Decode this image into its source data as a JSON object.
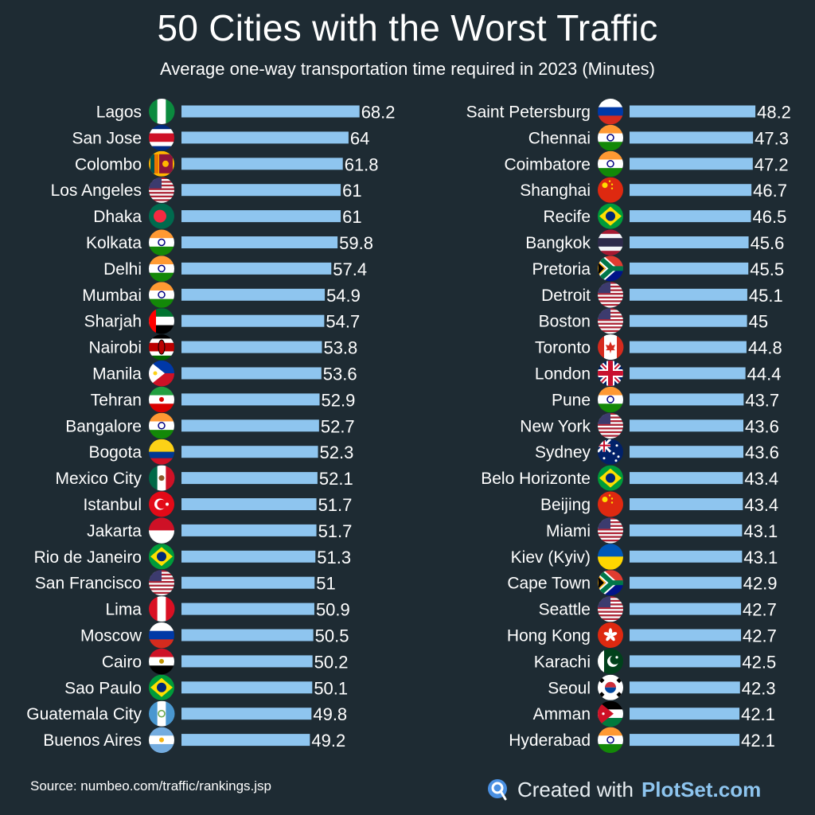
{
  "header": {
    "title": "50 Cities with the Worst Traffic",
    "subtitle": "Average one-way transportation time required  in 2023 (Minutes)"
  },
  "footer": {
    "source": "Source: numbeo.com/traffic/rankings.jsp",
    "created_with": "Created with",
    "brand": "PlotSet.com"
  },
  "colors": {
    "background": "#1e2b33",
    "bar": "#8ec5ef",
    "text": "#ffffff",
    "brand": "#8ec5ef"
  },
  "chart_data": {
    "type": "bar",
    "orientation": "horizontal",
    "title": "50 Cities with the Worst Traffic",
    "subtitle": "Average one-way transportation time required  in 2023 (Minutes)",
    "grid": false,
    "legend": "none",
    "columns": [
      {
        "categories": [
          "Lagos",
          "San Jose",
          "Colombo",
          "Los Angeles",
          "Dhaka",
          "Kolkata",
          "Delhi",
          "Mumbai",
          "Sharjah",
          "Nairobi",
          "Manila",
          "Tehran",
          "Bangalore",
          "Bogota",
          "Mexico City",
          "Istanbul",
          "Jakarta",
          "Rio de Janeiro",
          "San Francisco",
          "Lima",
          "Moscow",
          "Cairo",
          "Sao Paulo",
          "Guatemala City",
          "Buenos Aires"
        ],
        "values": [
          68.2,
          64,
          61.8,
          61,
          61,
          59.8,
          57.4,
          54.9,
          54.7,
          53.8,
          53.6,
          52.9,
          52.7,
          52.3,
          52.1,
          51.7,
          51.7,
          51.3,
          51,
          50.9,
          50.5,
          50.2,
          50.1,
          49.8,
          49.2
        ],
        "value_labels": [
          "68.2",
          "64",
          "61.8",
          "61",
          "61",
          "59.8",
          "57.4",
          "54.9",
          "54.7",
          "53.8",
          "53.6",
          "52.9",
          "52.7",
          "52.3",
          "52.1",
          "51.7",
          "51.7",
          "51.3",
          "51",
          "50.9",
          "50.5",
          "50.2",
          "50.1",
          "49.8",
          "49.2"
        ],
        "flags": [
          "nigeria-flag-icon",
          "costa-rica-flag-icon",
          "sri-lanka-flag-icon",
          "usa-flag-icon",
          "bangladesh-flag-icon",
          "india-flag-icon",
          "india-flag-icon",
          "india-flag-icon",
          "uae-flag-icon",
          "kenya-flag-icon",
          "philippines-flag-icon",
          "iran-flag-icon",
          "india-flag-icon",
          "colombia-flag-icon",
          "mexico-flag-icon",
          "turkey-flag-icon",
          "indonesia-flag-icon",
          "brazil-flag-icon",
          "usa-flag-icon",
          "peru-flag-icon",
          "russia-flag-icon",
          "egypt-flag-icon",
          "brazil-flag-icon",
          "guatemala-flag-icon",
          "argentina-flag-icon"
        ]
      },
      {
        "categories": [
          "Saint Petersburg",
          "Chennai",
          "Coimbatore",
          "Shanghai",
          "Recife",
          "Bangkok",
          "Pretoria",
          "Detroit",
          "Boston",
          "Toronto",
          "London",
          "Pune",
          "New York",
          "Sydney",
          "Belo Horizonte",
          "Beijing",
          "Miami",
          "Kiev (Kyiv)",
          "Cape Town",
          "Seattle",
          "Hong Kong",
          "Karachi",
          "Seoul",
          "Amman",
          "Hyderabad"
        ],
        "values": [
          48.2,
          47.3,
          47.2,
          46.7,
          46.5,
          45.6,
          45.5,
          45.1,
          45,
          44.8,
          44.4,
          43.7,
          43.6,
          43.6,
          43.4,
          43.4,
          43.1,
          43.1,
          42.9,
          42.7,
          42.7,
          42.5,
          42.3,
          42.1,
          42.1
        ],
        "value_labels": [
          "48.2",
          "47.3",
          "47.2",
          "46.7",
          "46.5",
          "45.6",
          "45.5",
          "45.1",
          "45",
          "44.8",
          "44.4",
          "43.7",
          "43.6",
          "43.6",
          "43.4",
          "43.4",
          "43.1",
          "43.1",
          "42.9",
          "42.7",
          "42.7",
          "42.5",
          "42.3",
          "42.1",
          "42.1"
        ],
        "flags": [
          "russia-flag-icon",
          "india-flag-icon",
          "india-flag-icon",
          "china-flag-icon",
          "brazil-flag-icon",
          "thailand-flag-icon",
          "south-africa-flag-icon",
          "usa-flag-icon",
          "usa-flag-icon",
          "canada-flag-icon",
          "uk-flag-icon",
          "india-flag-icon",
          "usa-flag-icon",
          "australia-flag-icon",
          "brazil-flag-icon",
          "china-flag-icon",
          "usa-flag-icon",
          "ukraine-flag-icon",
          "south-africa-flag-icon",
          "usa-flag-icon",
          "hong-kong-flag-icon",
          "pakistan-flag-icon",
          "south-korea-flag-icon",
          "jordan-flag-icon",
          "india-flag-icon"
        ]
      }
    ]
  }
}
